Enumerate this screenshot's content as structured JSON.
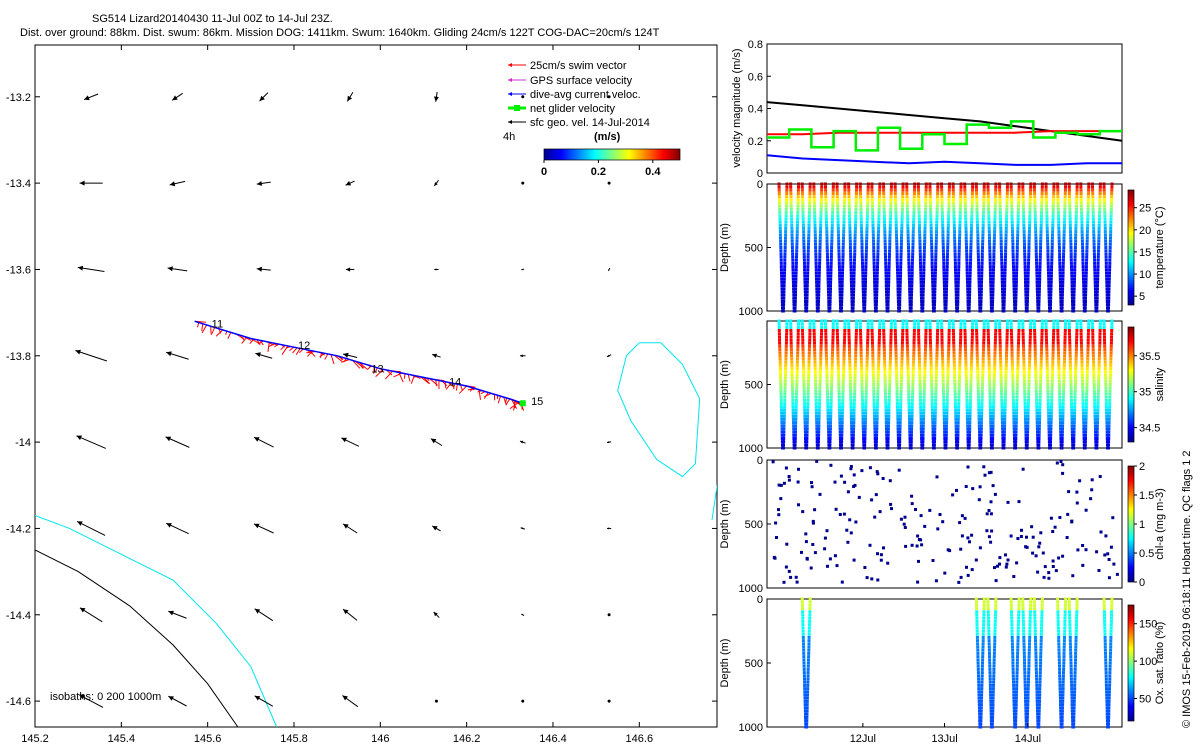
{
  "header": {
    "title": "SG514 Lizard20140430 11-Jul 00Z to 14-Jul 23Z.",
    "subtitle": "Dist. over ground: 88km. Dist. swum: 86km. Mission DOG: 1411km. Swum: 1640km. Gliding 24cm/s 122T COG-DAC=20cm/s 124T"
  },
  "side_caption": "© IMOS 15-Feb-2019 06:18:11 Hobart time. QC flags 1  2",
  "colors": {
    "swim": "#ff0000",
    "gps": "#cc33cc",
    "dac": "#0000ff",
    "net": "#00ee00",
    "geo": "#000000",
    "isobath_200": "#00e5ee",
    "isobath_1000": "#000000"
  },
  "chart_data": [
    {
      "type": "scatter",
      "panel": "map",
      "x_ticks": [
        "145.2",
        "145.4",
        "145.6",
        "145.8",
        "146",
        "146.2",
        "146.4",
        "146.6"
      ],
      "y_ticks": [
        "-13.2",
        "-13.4",
        "-13.6",
        "-13.8",
        "-14",
        "-14.2",
        "-14.4",
        "-14.6"
      ],
      "xlim": [
        145.2,
        146.78
      ],
      "ylim": [
        -14.66,
        -13.08
      ],
      "legend": {
        "placement": "top-right",
        "entries": [
          "25cm/s swim vector",
          "GPS surface velocity",
          "dive-avg current veloc.",
          "net glider velocity",
          "sfc geo. vel. 14-Jul-2014"
        ],
        "time_label": "4h",
        "colorbar_title": "(m/s)",
        "colorbar_ticks": [
          "0",
          "0.2",
          "0.4"
        ],
        "colorbar_range": [
          0,
          0.5
        ]
      },
      "isobath_label": "isobaths: 0   200   1000m",
      "track_labels": [
        {
          "label": "11",
          "lon": 145.6,
          "lat": -13.725
        },
        {
          "label": "12",
          "lon": 145.8,
          "lat": -13.775
        },
        {
          "label": "13",
          "lon": 145.97,
          "lat": -13.83
        },
        {
          "label": "14",
          "lon": 146.15,
          "lat": -13.86
        },
        {
          "label": "15",
          "lon": 146.34,
          "lat": -13.905
        }
      ],
      "track": [
        [
          145.57,
          -13.72
        ],
        [
          145.7,
          -13.76
        ],
        [
          145.8,
          -13.78
        ],
        [
          145.9,
          -13.8
        ],
        [
          146.0,
          -13.83
        ],
        [
          146.1,
          -13.85
        ],
        [
          146.2,
          -13.87
        ],
        [
          146.3,
          -13.9
        ],
        [
          146.33,
          -13.91
        ]
      ],
      "geo_grid": {
        "lons": [
          145.33,
          145.53,
          145.73,
          145.93,
          146.13,
          146.33,
          146.53
        ],
        "lats": [
          -13.2,
          -13.4,
          -13.6,
          -13.8,
          -14.0,
          -14.2,
          -14.4,
          -14.6
        ],
        "rows": [
          [
            [
              -0.2,
              -0.08
            ],
            [
              -0.15,
              -0.1
            ],
            [
              -0.12,
              -0.12
            ],
            [
              -0.08,
              -0.13
            ],
            [
              -0.02,
              -0.14
            ],
            [
              0,
              0
            ],
            [
              0,
              0
            ]
          ],
          [
            [
              -0.33,
              0
            ],
            [
              -0.22,
              -0.05
            ],
            [
              -0.2,
              -0.03
            ],
            [
              -0.13,
              -0.06
            ],
            [
              -0.06,
              -0.08
            ],
            [
              0,
              0
            ],
            [
              0,
              0
            ]
          ],
          [
            [
              -0.38,
              0.06
            ],
            [
              -0.28,
              0.04
            ],
            [
              -0.2,
              0.02
            ],
            [
              -0.12,
              0
            ],
            [
              -0.06,
              0
            ],
            [
              -0.04,
              -0.01
            ],
            [
              -0.02,
              -0.04
            ]
          ],
          [
            [
              -0.45,
              0.15
            ],
            [
              -0.32,
              0.1
            ],
            [
              -0.24,
              0.07
            ],
            [
              -0.2,
              0.05
            ],
            [
              -0.12,
              0.04
            ],
            [
              -0.08,
              0
            ],
            [
              -0.06,
              -0.03
            ]
          ],
          [
            [
              -0.42,
              0.18
            ],
            [
              -0.34,
              0.15
            ],
            [
              -0.28,
              0.14
            ],
            [
              -0.25,
              0.12
            ],
            [
              -0.16,
              0.1
            ],
            [
              -0.08,
              0.03
            ],
            [
              -0.06,
              -0.01
            ]
          ],
          [
            [
              -0.4,
              0.2
            ],
            [
              -0.32,
              0.15
            ],
            [
              -0.28,
              0.13
            ],
            [
              -0.2,
              0.13
            ],
            [
              -0.12,
              0.07
            ],
            [
              -0.06,
              0.02
            ],
            [
              -0.06,
              0
            ]
          ],
          [
            [
              -0.32,
              0.2
            ],
            [
              -0.26,
              0.1
            ],
            [
              -0.26,
              0.17
            ],
            [
              -0.2,
              0.16
            ],
            [
              -0.08,
              0.08
            ],
            [
              -0.04,
              0.02
            ],
            [
              0,
              0
            ]
          ],
          [
            [
              -0.34,
              0.18
            ],
            [
              -0.26,
              0.14
            ],
            [
              -0.26,
              0.15
            ],
            [
              -0.22,
              0.16
            ],
            [
              0,
              0
            ],
            [
              0,
              0
            ],
            [
              0,
              0
            ]
          ]
        ]
      },
      "isobaths": [
        {
          "depth": "200",
          "points": [
            [
              145.2,
              -14.17
            ],
            [
              145.28,
              -14.2
            ],
            [
              145.4,
              -14.26
            ],
            [
              145.52,
              -14.32
            ],
            [
              145.62,
              -14.42
            ],
            [
              145.7,
              -14.52
            ],
            [
              145.76,
              -14.66
            ]
          ]
        },
        {
          "depth": "1000",
          "points": [
            [
              145.2,
              -14.25
            ],
            [
              145.3,
              -14.3
            ],
            [
              145.42,
              -14.38
            ],
            [
              145.52,
              -14.47
            ],
            [
              145.6,
              -14.56
            ],
            [
              145.67,
              -14.66
            ]
          ]
        }
      ],
      "reef_outline": [
        [
          146.6,
          -13.77
        ],
        [
          146.65,
          -13.77
        ],
        [
          146.7,
          -13.82
        ],
        [
          146.74,
          -13.9
        ],
        [
          146.73,
          -14.05
        ],
        [
          146.7,
          -14.08
        ],
        [
          146.64,
          -14.04
        ],
        [
          146.58,
          -13.95
        ],
        [
          146.55,
          -13.88
        ],
        [
          146.57,
          -13.8
        ],
        [
          146.6,
          -13.77
        ]
      ]
    },
    {
      "type": "line",
      "panel": "velocity",
      "ylabel": "velocity magnitude (m/s)",
      "ylim": [
        0,
        0.8
      ],
      "y_ticks": [
        "0",
        "0.2",
        "0.4",
        "0.6",
        "0.8"
      ],
      "series": [
        {
          "color": "#000000",
          "values": [
            0.44,
            0.42,
            0.4,
            0.38,
            0.36,
            0.34,
            0.32,
            0.29,
            0.26,
            0.23,
            0.2
          ]
        },
        {
          "color": "#ff0000",
          "values": [
            0.24,
            0.24,
            0.25,
            0.25,
            0.25,
            0.25,
            0.25,
            0.25,
            0.26,
            0.26,
            0.26
          ]
        },
        {
          "color": "#00ee00",
          "values": [
            0.22,
            0.27,
            0.16,
            0.26,
            0.14,
            0.28,
            0.15,
            0.24,
            0.18,
            0.3,
            0.28,
            0.32,
            0.22,
            0.25,
            0.24,
            0.26
          ]
        },
        {
          "color": "#0000ff",
          "values": [
            0.11,
            0.09,
            0.08,
            0.07,
            0.06,
            0.07,
            0.06,
            0.05,
            0.05,
            0.06,
            0.06
          ]
        }
      ]
    },
    {
      "type": "scatter",
      "panel": "temperature",
      "ylabel": "Depth (m)",
      "y_ticks": [
        "0",
        "500",
        "1000"
      ],
      "ylim": [
        1000,
        0
      ],
      "colorbar_label": "temperature (°C)",
      "colorbar_ticks": [
        "5",
        "10",
        "15",
        "20",
        "25"
      ],
      "colorbar_range": [
        3,
        29
      ]
    },
    {
      "type": "scatter",
      "panel": "salinity",
      "ylabel": "Depth (m)",
      "y_ticks": [
        "500",
        "1000"
      ],
      "ylim": [
        1000,
        0
      ],
      "colorbar_label": "salinity",
      "colorbar_ticks": [
        "34.5",
        "35",
        "35.5"
      ],
      "colorbar_range": [
        34.3,
        35.9
      ]
    },
    {
      "type": "scatter",
      "panel": "chla",
      "ylabel": "Depth (m)",
      "y_ticks": [
        "0",
        "500",
        "1000"
      ],
      "ylim": [
        1000,
        0
      ],
      "colorbar_label": "chl-a (mg m-3)",
      "colorbar_ticks": [
        "0",
        "0.5",
        "1",
        "1.5",
        "2"
      ],
      "colorbar_range": [
        0,
        2
      ]
    },
    {
      "type": "scatter",
      "panel": "oxygen",
      "ylabel": "Depth (m)",
      "y_ticks": [
        "0",
        "500",
        "1000"
      ],
      "ylim": [
        1000,
        0
      ],
      "colorbar_label": "Ox. sat. ratio (%)",
      "colorbar_ticks": [
        "50",
        "100",
        "150"
      ],
      "colorbar_range": [
        20,
        175
      ],
      "x_ticks": [
        "12Jul",
        "13Jul",
        "14Jul"
      ]
    }
  ]
}
